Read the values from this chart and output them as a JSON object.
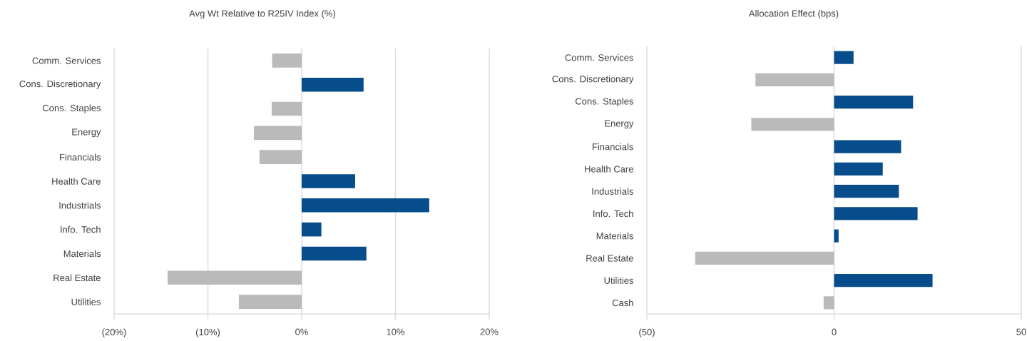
{
  "chart_data": [
    {
      "type": "bar",
      "orientation": "horizontal",
      "title": "Avg Wt Relative to R25IV Index (%)",
      "categories": [
        "Comm. Services",
        "Cons. Discretionary",
        "Cons. Staples",
        "Energy",
        "Financials",
        "Health Care",
        "Industrials",
        "Info. Tech",
        "Materials",
        "Real Estate",
        "Utilities"
      ],
      "values": [
        -3.15,
        6.6,
        -3.2,
        -5.1,
        -4.5,
        5.7,
        13.6,
        2.1,
        6.9,
        -14.3,
        -6.7
      ],
      "colors": [
        "#bababa",
        "#084d8b",
        "#bababa",
        "#bababa",
        "#bababa",
        "#084d8b",
        "#084d8b",
        "#084d8b",
        "#084d8b",
        "#bababa",
        "#bababa"
      ],
      "xlim": [
        -20,
        20
      ],
      "xticks": [
        {
          "value": -20,
          "label": "(20%)"
        },
        {
          "value": -10,
          "label": "(10%)"
        },
        {
          "value": 0,
          "label": "0%"
        },
        {
          "value": 10,
          "label": "10%"
        },
        {
          "value": 20,
          "label": "20%"
        }
      ],
      "grid": "x"
    },
    {
      "type": "bar",
      "orientation": "horizontal",
      "title": "Allocation Effect (bps)",
      "categories": [
        "Comm. Services",
        "Cons. Discretionary",
        "Cons. Staples",
        "Energy",
        "Financials",
        "Health Care",
        "Industrials",
        "Info. Tech",
        "Materials",
        "Real Estate",
        "Utilities",
        "Cash"
      ],
      "values": [
        5.2,
        -21.0,
        21.1,
        -22.1,
        17.9,
        13.0,
        17.3,
        22.3,
        1.2,
        -37.1,
        26.3,
        -2.8
      ],
      "colors": [
        "#084d8b",
        "#bababa",
        "#084d8b",
        "#bababa",
        "#084d8b",
        "#084d8b",
        "#084d8b",
        "#084d8b",
        "#084d8b",
        "#bababa",
        "#084d8b",
        "#bababa"
      ],
      "xlim": [
        -50,
        50
      ],
      "xticks": [
        {
          "value": -50,
          "label": "(50)"
        },
        0,
        50
      ],
      "grid": "x"
    }
  ]
}
